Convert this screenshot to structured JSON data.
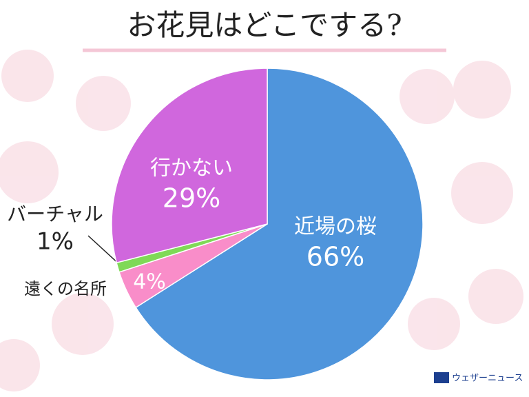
{
  "chart_data": {
    "type": "pie",
    "title": "お花見はどこでする?",
    "categories": [
      "近場の桜",
      "遠くの名所",
      "バーチャル",
      "行かない"
    ],
    "values": [
      66,
      4,
      1,
      29
    ],
    "value_labels": [
      "66%",
      "4%",
      "1%",
      "29%"
    ],
    "colors": [
      "#4f95dc",
      "#f98dc9",
      "#7fd957",
      "#d067dd"
    ],
    "source": "ウェザーニュース"
  }
}
